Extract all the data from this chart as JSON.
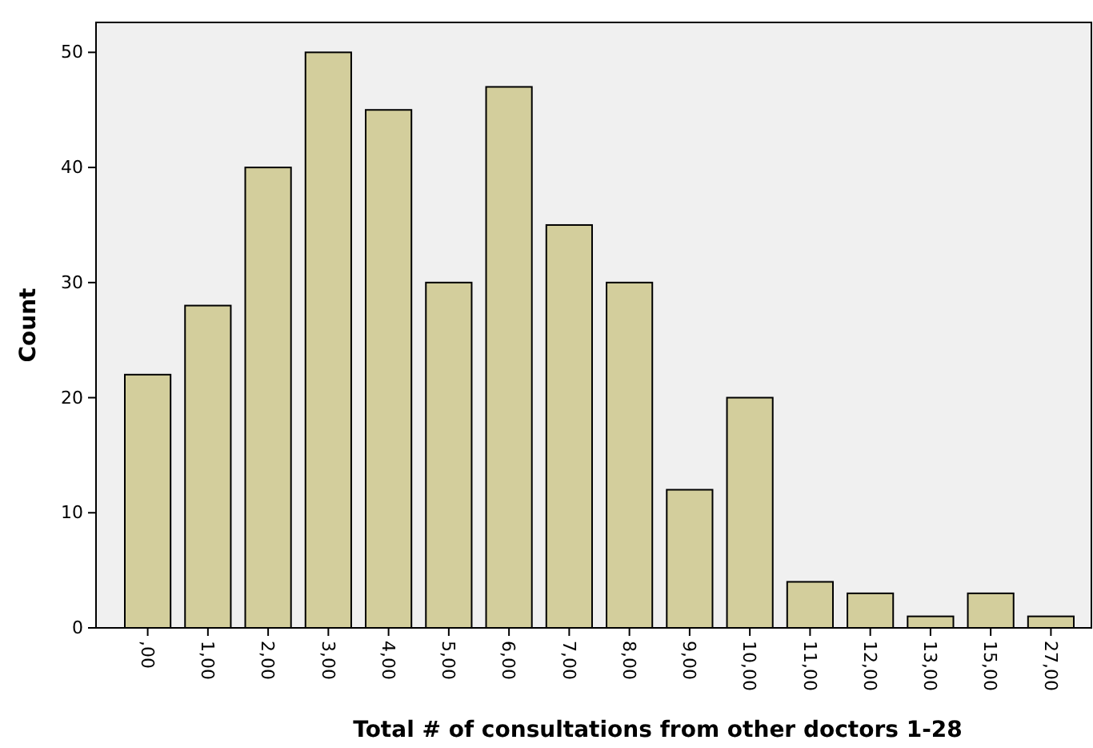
{
  "chart_data": {
    "type": "bar",
    "xlabel": "Total # of consultations from other doctors 1-28",
    "ylabel": "Count",
    "categories": [
      ",00",
      "1,00",
      "2,00",
      "3,00",
      "4,00",
      "5,00",
      "6,00",
      "7,00",
      "8,00",
      "9,00",
      "10,00",
      "11,00",
      "12,00",
      "13,00",
      "15,00",
      "27,00"
    ],
    "values": [
      22,
      28,
      40,
      50,
      45,
      30,
      47,
      35,
      30,
      12,
      20,
      4,
      3,
      1,
      3,
      1
    ],
    "color": "#d3ce9c",
    "ylim": [
      0,
      52.6
    ],
    "yticks": [
      0,
      10,
      20,
      30,
      40,
      50
    ],
    "grid": false
  }
}
